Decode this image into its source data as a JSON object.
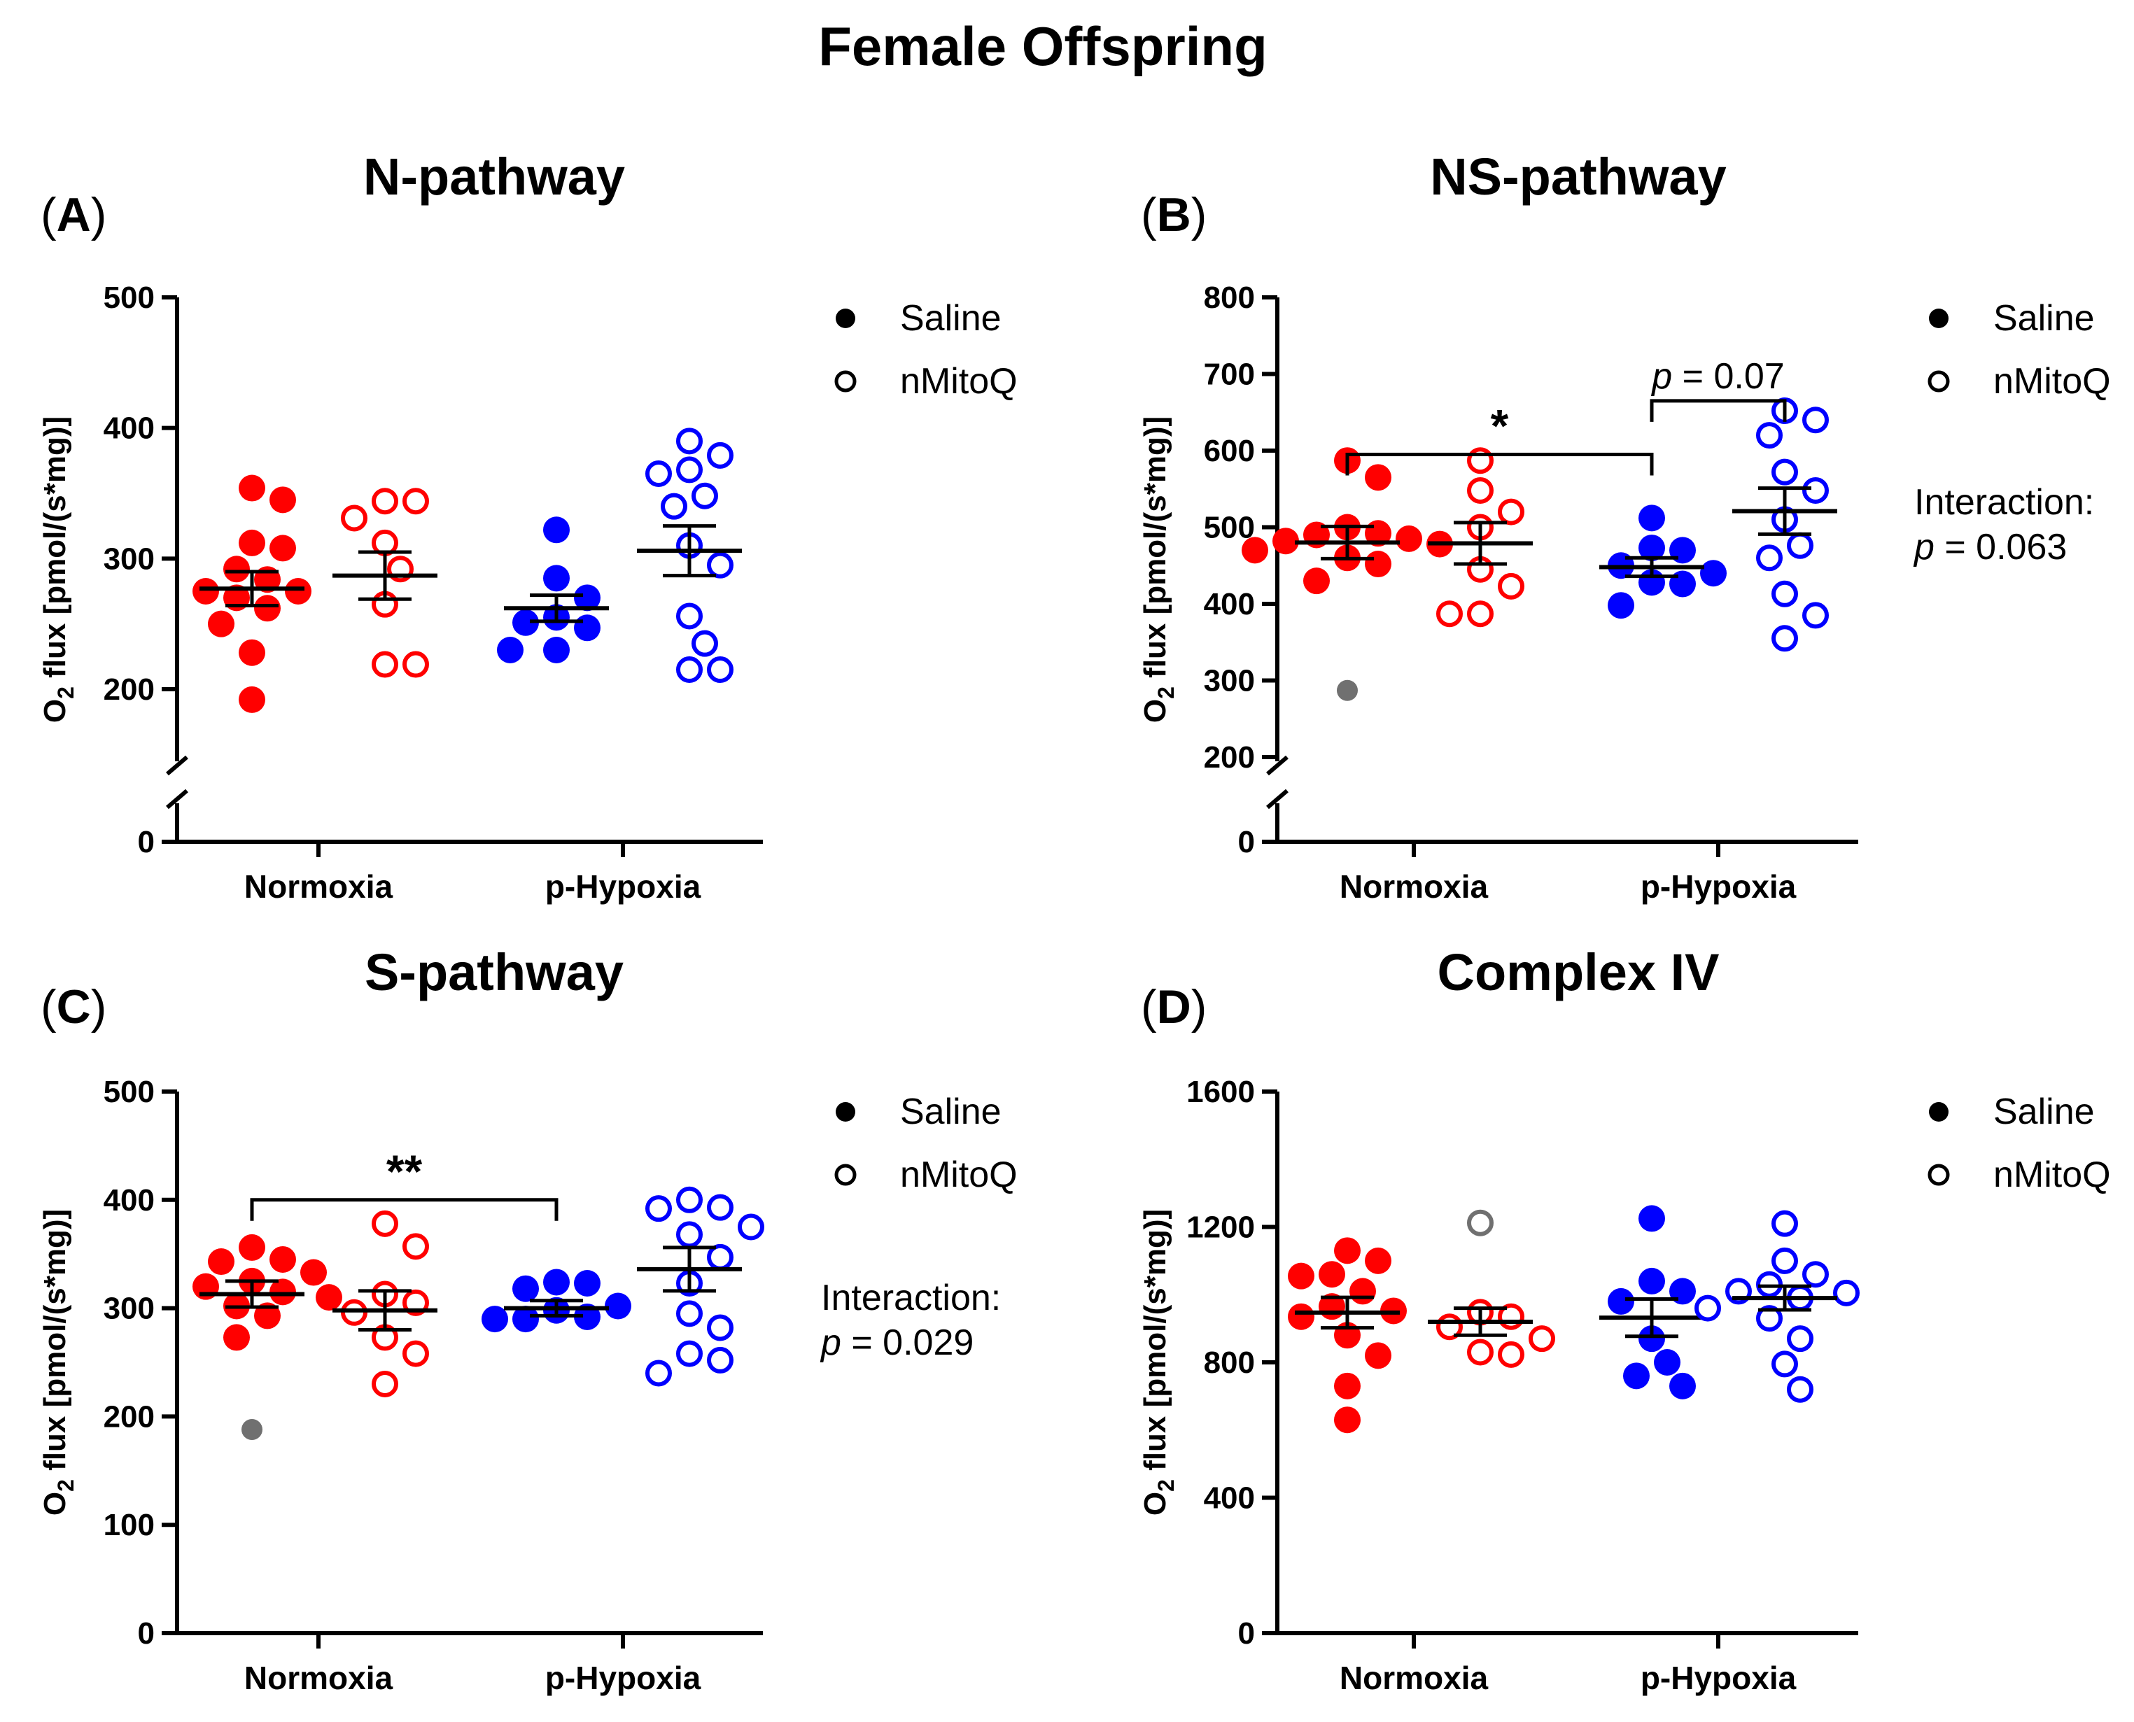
{
  "figure": {
    "title": "Female Offspring",
    "legend": {
      "saline": "Saline",
      "nmitoq": "nMitoQ"
    },
    "interaction_label": "Interaction:",
    "p_symbol": "p"
  },
  "colors": {
    "normoxia": "#ff0000",
    "hypoxia": "#0000ff",
    "outlier": "#707070",
    "axis": "#000000"
  },
  "chart_data": [
    {
      "type": "scatter",
      "label": "A",
      "title": "N-pathway",
      "ylabel": "O2 flux [pmol/(s*mg)]",
      "categories": [
        "Normoxia",
        "p-Hypoxia"
      ],
      "yticks": [
        0,
        200,
        300,
        400,
        500
      ],
      "axis_break": [
        0,
        170
      ],
      "ylim": [
        0,
        500
      ],
      "groups": [
        {
          "category": "Normoxia",
          "treatment": "Saline",
          "filled": true,
          "mean": 277,
          "sem": 13,
          "points": [
            354,
            345,
            312,
            308,
            292,
            284,
            275,
            275,
            270,
            262,
            250,
            228,
            192
          ],
          "outliers": []
        },
        {
          "category": "Normoxia",
          "treatment": "nMitoQ",
          "filled": false,
          "mean": 287,
          "sem": 18,
          "points": [
            344,
            344,
            331,
            312,
            292,
            265,
            219,
            219
          ],
          "outliers": []
        },
        {
          "category": "p-Hypoxia",
          "treatment": "Saline",
          "filled": true,
          "mean": 262,
          "sem": 10,
          "points": [
            322,
            285,
            270,
            255,
            251,
            247,
            230,
            230
          ],
          "outliers": []
        },
        {
          "category": "p-Hypoxia",
          "treatment": "nMitoQ",
          "filled": false,
          "mean": 306,
          "sem": 19,
          "points": [
            390,
            379,
            368,
            365,
            348,
            340,
            310,
            295,
            256,
            235,
            215,
            215
          ],
          "outliers": []
        }
      ],
      "annotations": []
    },
    {
      "type": "scatter",
      "label": "B",
      "title": "NS-pathway",
      "ylabel": "O2 flux [pmol/(s*mg)]",
      "categories": [
        "Normoxia",
        "p-Hypoxia"
      ],
      "yticks": [
        0,
        200,
        300,
        400,
        500,
        600,
        700,
        800
      ],
      "axis_break": [
        0,
        170
      ],
      "ylim": [
        0,
        800
      ],
      "groups": [
        {
          "category": "Normoxia",
          "treatment": "Saline",
          "filled": true,
          "mean": 480,
          "sem": 21,
          "points": [
            587,
            565,
            500,
            492,
            490,
            485,
            482,
            478,
            470,
            460,
            452,
            430
          ],
          "outliers": [
            287
          ]
        },
        {
          "category": "Normoxia",
          "treatment": "nMitoQ",
          "filled": false,
          "mean": 479,
          "sem": 27,
          "points": [
            587,
            548,
            520,
            500,
            445,
            423,
            387,
            387
          ],
          "outliers": []
        },
        {
          "category": "p-Hypoxia",
          "treatment": "Saline",
          "filled": true,
          "mean": 448,
          "sem": 12,
          "points": [
            512,
            473,
            470,
            450,
            440,
            428,
            426,
            398
          ],
          "outliers": []
        },
        {
          "category": "p-Hypoxia",
          "treatment": "nMitoQ",
          "filled": false,
          "mean": 521,
          "sem": 30,
          "points": [
            652,
            640,
            620,
            572,
            548,
            510,
            476,
            460,
            413,
            385,
            355
          ],
          "outliers": []
        }
      ],
      "annotations": [
        {
          "kind": "bracket",
          "from": [
            0,
            0
          ],
          "to": [
            1,
            0
          ],
          "y": 595,
          "text": "*"
        },
        {
          "kind": "bracket",
          "from": [
            1,
            0
          ],
          "to": [
            1,
            1
          ],
          "y": 665,
          "text": " = 0.07",
          "italic_p": true
        },
        {
          "kind": "interaction",
          "text": " = 0.063"
        }
      ]
    },
    {
      "type": "scatter",
      "label": "C",
      "title": "S-pathway",
      "ylabel": "O2 flux [pmol/(s*mg)]",
      "categories": [
        "Normoxia",
        "p-Hypoxia"
      ],
      "yticks": [
        0,
        100,
        200,
        300,
        400,
        500
      ],
      "axis_break": null,
      "ylim": [
        0,
        500
      ],
      "groups": [
        {
          "category": "Normoxia",
          "treatment": "Saline",
          "filled": true,
          "mean": 313,
          "sem": 12,
          "points": [
            356,
            345,
            343,
            333,
            325,
            320,
            315,
            310,
            302,
            293,
            273
          ],
          "outliers": [
            188
          ]
        },
        {
          "category": "Normoxia",
          "treatment": "nMitoQ",
          "filled": false,
          "mean": 298,
          "sem": 18,
          "points": [
            378,
            357,
            313,
            305,
            296,
            273,
            258,
            230
          ],
          "outliers": []
        },
        {
          "category": "p-Hypoxia",
          "treatment": "Saline",
          "filled": true,
          "mean": 300,
          "sem": 7,
          "points": [
            324,
            323,
            318,
            302,
            298,
            292,
            290,
            290
          ],
          "outliers": []
        },
        {
          "category": "p-Hypoxia",
          "treatment": "nMitoQ",
          "filled": false,
          "mean": 336,
          "sem": 20,
          "points": [
            400,
            393,
            392,
            375,
            368,
            347,
            323,
            295,
            282,
            258,
            252,
            240
          ],
          "outliers": []
        }
      ],
      "annotations": [
        {
          "kind": "bracket",
          "from": [
            0,
            0
          ],
          "to": [
            1,
            0
          ],
          "y": 400,
          "text": "**"
        },
        {
          "kind": "interaction",
          "text": " = 0.029"
        }
      ]
    },
    {
      "type": "scatter",
      "label": "D",
      "title": "Complex IV",
      "ylabel": "O2 flux [pmol/(s*mg)]",
      "categories": [
        "Normoxia",
        "p-Hypoxia"
      ],
      "yticks": [
        0,
        400,
        800,
        1200,
        1600
      ],
      "axis_break": null,
      "ylim": [
        0,
        1600
      ],
      "groups": [
        {
          "category": "Normoxia",
          "treatment": "Saline",
          "filled": true,
          "mean": 947,
          "sem": 45,
          "points": [
            1130,
            1100,
            1060,
            1055,
            1010,
            965,
            952,
            935,
            880,
            820,
            730,
            630
          ],
          "outliers": []
        },
        {
          "category": "Normoxia",
          "treatment": "nMitoQ",
          "filled": false,
          "mean": 920,
          "sem": 40,
          "points": [
            948,
            935,
            905,
            870,
            830,
            823
          ],
          "outliers": [
            1212
          ]
        },
        {
          "category": "p-Hypoxia",
          "treatment": "Saline",
          "filled": true,
          "mean": 932,
          "sem": 55,
          "points": [
            1225,
            1040,
            1010,
            980,
            870,
            800,
            760,
            730
          ],
          "outliers": []
        },
        {
          "category": "p-Hypoxia",
          "treatment": "nMitoQ",
          "filled": false,
          "mean": 990,
          "sem": 35,
          "points": [
            1210,
            1100,
            1060,
            1030,
            1010,
            1005,
            990,
            960,
            930,
            870,
            795,
            720
          ],
          "outliers": []
        }
      ],
      "annotations": []
    }
  ]
}
